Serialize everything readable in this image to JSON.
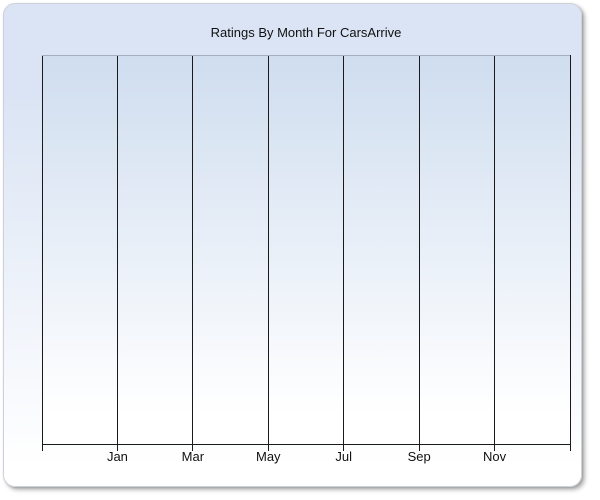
{
  "header": {
    "title": "Ratings By Month For CarsArrive"
  },
  "chart_data": {
    "type": "line",
    "title": "Ratings By Month For CarsArrive",
    "x": {
      "tick_labels": [
        "Jan",
        "Mar",
        "May",
        "Jul",
        "Sep",
        "Nov"
      ],
      "gridlines": 8,
      "note": "monthly axis, one gridline every two months, labels on interior gridlines only"
    },
    "y": {
      "tick_labels": [],
      "axis_visible": false
    },
    "series": [],
    "legend": "none",
    "grid": "vertical gridlines only; plot area is empty (no data rendered)"
  },
  "colors": {
    "card_gradient_top": "#dae4f4",
    "card_gradient_bottom": "#ffffff",
    "card_border": "#cdd2da",
    "plot_gradient_top": "#cfddef",
    "plot_gradient_bottom": "#ffffff",
    "plot_top_border": "#a6aebc",
    "gridline": "#1a1a1a",
    "axis_line": "#1a1a1a",
    "text": "#111111"
  }
}
